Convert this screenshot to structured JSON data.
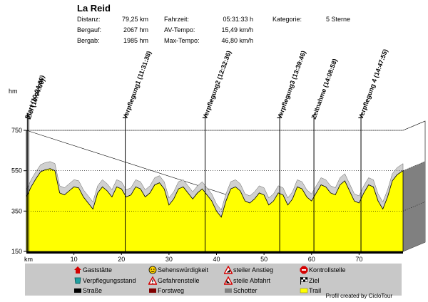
{
  "header": {
    "title": "La Reid",
    "stats": [
      {
        "label": "Distanz:",
        "value": "79,25 km"
      },
      {
        "label": "Bergauf:",
        "value": "2067 hm"
      },
      {
        "label": "Bergab:",
        "value": "1985 hm"
      },
      {
        "label": "Fahrzeit:",
        "value": "05:31:33 h"
      },
      {
        "label": "AV-Tempo:",
        "value": "15,49 km/h"
      },
      {
        "label": "Max-Tempo:",
        "value": "46,80 km/h"
      },
      {
        "label": "Kategorie:",
        "value": "5 Sterne"
      }
    ]
  },
  "chart_data": {
    "type": "area",
    "ylabel": "hm",
    "xlabel": "km",
    "ylim": [
      150,
      750
    ],
    "xlim": [
      0,
      79.25
    ],
    "y_ticks": [
      150,
      350,
      550,
      750
    ],
    "x_ticks": [
      10,
      20,
      30,
      40,
      50,
      60,
      70
    ],
    "x_tick_labels": [
      "10",
      "20",
      "30",
      "40",
      "50",
      "60",
      "70"
    ],
    "y_tick_labels": [
      "150",
      "350",
      "550",
      "750"
    ],
    "x_unit_label": "km",
    "grid": true,
    "profile": {
      "x": [
        0,
        1,
        2,
        3,
        4,
        5,
        6,
        7,
        8,
        9,
        10,
        11,
        12,
        13,
        14,
        15,
        16,
        17,
        18,
        19,
        20,
        21,
        22,
        23,
        24,
        25,
        26,
        27,
        28,
        29,
        30,
        31,
        32,
        33,
        34,
        35,
        36,
        37,
        38,
        39,
        40,
        41,
        42,
        43,
        44,
        45,
        46,
        47,
        48,
        49,
        50,
        51,
        52,
        53,
        54,
        55,
        56,
        57,
        58,
        59,
        60,
        61,
        62,
        63,
        64,
        65,
        66,
        67,
        68,
        69,
        70,
        71,
        72,
        73,
        74,
        75,
        76,
        77,
        78,
        79.25
      ],
      "y": [
        420,
        470,
        510,
        545,
        555,
        560,
        550,
        440,
        430,
        450,
        470,
        465,
        420,
        390,
        360,
        440,
        470,
        450,
        420,
        470,
        460,
        420,
        430,
        470,
        460,
        420,
        440,
        480,
        490,
        460,
        380,
        410,
        460,
        470,
        440,
        410,
        440,
        460,
        430,
        400,
        350,
        320,
        400,
        460,
        470,
        450,
        400,
        390,
        410,
        440,
        430,
        380,
        400,
        440,
        430,
        380,
        410,
        470,
        460,
        420,
        400,
        440,
        480,
        470,
        440,
        430,
        480,
        500,
        450,
        400,
        390,
        440,
        480,
        470,
        400,
        360,
        420,
        500,
        530,
        550
      ]
    },
    "markers": [
      {
        "km": 0.2,
        "label": "Start (10:04:00)"
      },
      {
        "km": 0.5,
        "label": "Ziel (10:04:00)"
      },
      {
        "km": 20.8,
        "label": "Verpflegung1 (11:31:38)"
      },
      {
        "km": 37.6,
        "label": "Verpflegung2 (12:32:36)"
      },
      {
        "km": 53.3,
        "label": "Verpflegung3 (13:39:46)"
      },
      {
        "km": 60.5,
        "label": "Zeitnahme (14:08:58)"
      },
      {
        "km": 70.4,
        "label": "Verpflegung 4 (14:47:55)"
      }
    ],
    "colors": {
      "fill": "#ffff00",
      "sky": "#d0d0d0",
      "edge": "#000000",
      "shadow": "#808080"
    }
  },
  "legend": {
    "items": [
      {
        "label": "Gaststätte",
        "icon": "house-icon"
      },
      {
        "label": "Sehenswürdigkeit",
        "icon": "smiley-icon"
      },
      {
        "label": "steiler Anstieg",
        "icon": "warning-triangle-up-icon"
      },
      {
        "label": "Kontrollstelle",
        "icon": "stop-sign-icon"
      },
      {
        "label": "Verpflegungsstand",
        "icon": "cup-icon"
      },
      {
        "label": "Gefahrenstelle",
        "icon": "warning-triangle-icon"
      },
      {
        "label": "steile Abfahrt",
        "icon": "warning-triangle-down-icon"
      },
      {
        "label": "Ziel",
        "icon": "checkered-flag-icon"
      },
      {
        "label": "Straße",
        "icon": "road-swatch-icon",
        "color": "#000000"
      },
      {
        "label": "Forstweg",
        "icon": "forest-path-swatch-icon",
        "color": "#800000"
      },
      {
        "label": "Schotter",
        "icon": "gravel-swatch-icon",
        "color": "#808080"
      },
      {
        "label": "Trail",
        "icon": "trail-swatch-icon",
        "color": "#ffff00"
      }
    ]
  },
  "footer": {
    "credit": "Profil created by CicloTour"
  }
}
